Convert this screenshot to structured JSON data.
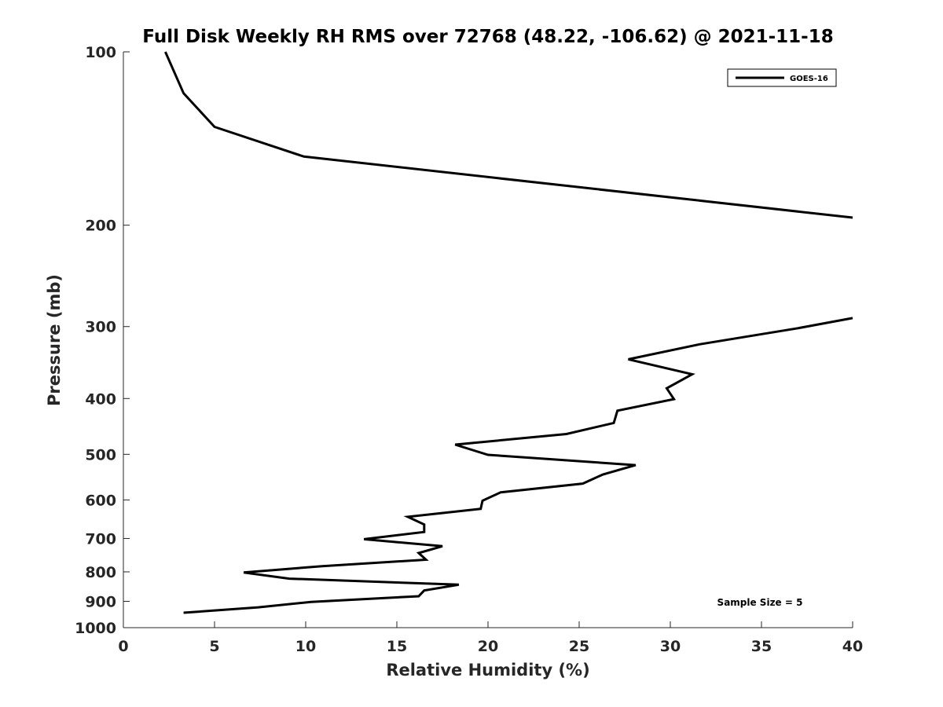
{
  "chart_data": {
    "type": "line",
    "title": "Full Disk Weekly RH RMS over 72768 (48.22, -106.62) @ 2021-11-18",
    "xlabel": "Relative Humidity (%)",
    "ylabel": "Pressure (mb)",
    "xlim": [
      0,
      40
    ],
    "ylim": [
      100,
      1000
    ],
    "yscale": "log",
    "yreversed": true,
    "xticks": [
      0,
      5,
      10,
      15,
      20,
      25,
      30,
      35,
      40
    ],
    "xtick_labels": [
      "0",
      "5",
      "10",
      "15",
      "20",
      "25",
      "30",
      "35",
      "40"
    ],
    "yticks": [
      100,
      200,
      300,
      400,
      500,
      600,
      700,
      800,
      900,
      1000
    ],
    "ytick_labels": [
      "100",
      "200",
      "300",
      "400",
      "500",
      "600",
      "700",
      "800",
      "900",
      "1000"
    ],
    "grid": false,
    "legend": {
      "position": "top-right",
      "entries": [
        "GOES-16"
      ]
    },
    "annotation": "Sample Size = 5",
    "line_color": "#000000",
    "series": [
      {
        "name": "GOES-16",
        "segments": [
          [
            {
              "x": 2.3,
              "p": 100
            },
            {
              "x": 3.3,
              "p": 118
            },
            {
              "x": 5.0,
              "p": 135
            },
            {
              "x": 9.9,
              "p": 152
            },
            {
              "x": 40.0,
              "p": 194
            }
          ],
          [
            {
              "x": 40.0,
              "p": 290
            },
            {
              "x": 37.0,
              "p": 302
            },
            {
              "x": 31.6,
              "p": 322
            },
            {
              "x": 27.7,
              "p": 342
            },
            {
              "x": 31.2,
              "p": 363
            },
            {
              "x": 29.8,
              "p": 384
            },
            {
              "x": 30.2,
              "p": 401
            },
            {
              "x": 27.1,
              "p": 420
            },
            {
              "x": 26.9,
              "p": 441
            },
            {
              "x": 24.3,
              "p": 461
            },
            {
              "x": 18.2,
              "p": 481
            },
            {
              "x": 20.0,
              "p": 501
            },
            {
              "x": 28.1,
              "p": 522
            },
            {
              "x": 26.3,
              "p": 542
            },
            {
              "x": 25.2,
              "p": 562
            },
            {
              "x": 20.7,
              "p": 582
            },
            {
              "x": 19.7,
              "p": 602
            },
            {
              "x": 19.6,
              "p": 622
            },
            {
              "x": 15.6,
              "p": 642
            },
            {
              "x": 16.5,
              "p": 662
            },
            {
              "x": 16.5,
              "p": 682
            },
            {
              "x": 13.2,
              "p": 702
            },
            {
              "x": 17.5,
              "p": 722
            },
            {
              "x": 16.2,
              "p": 742
            },
            {
              "x": 16.6,
              "p": 762
            },
            {
              "x": 10.9,
              "p": 782
            },
            {
              "x": 6.6,
              "p": 802
            },
            {
              "x": 9.1,
              "p": 822
            },
            {
              "x": 18.4,
              "p": 842
            },
            {
              "x": 16.5,
              "p": 862
            },
            {
              "x": 16.2,
              "p": 882
            },
            {
              "x": 10.3,
              "p": 902
            },
            {
              "x": 7.4,
              "p": 922
            },
            {
              "x": 3.3,
              "p": 942
            }
          ]
        ]
      }
    ]
  }
}
